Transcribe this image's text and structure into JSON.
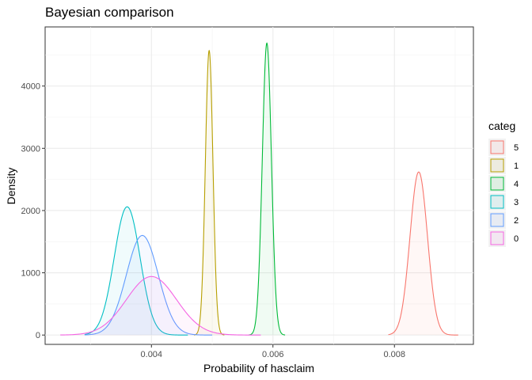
{
  "chart_data": {
    "type": "area",
    "title": "Bayesian comparison",
    "xlabel": "Probability of hasclaim",
    "ylabel": "Density",
    "xlim": [
      0.00225,
      0.0093
    ],
    "ylim": [
      -150,
      4950
    ],
    "xticks": [
      0.004,
      0.006,
      0.008
    ],
    "xtick_labels": [
      "0.004",
      "0.006",
      "0.008"
    ],
    "yticks": [
      0,
      1000,
      2000,
      3000,
      4000
    ],
    "ytick_labels": [
      "0",
      "1000",
      "2000",
      "3000",
      "4000"
    ],
    "grid": true,
    "legend": {
      "title": "categ",
      "position": "right"
    },
    "series": [
      {
        "name": "5",
        "color": "#F8766D",
        "mean": 0.0084,
        "peak": 2620,
        "range": [
          0.0079,
          0.00905
        ]
      },
      {
        "name": "1",
        "color": "#B79F00",
        "mean": 0.00495,
        "peak": 4570,
        "range": [
          0.0047,
          0.0052
        ]
      },
      {
        "name": "4",
        "color": "#00BA38",
        "mean": 0.0059,
        "peak": 4690,
        "range": [
          0.0056,
          0.0062
        ]
      },
      {
        "name": "3",
        "color": "#00BFC4",
        "mean": 0.0036,
        "peak": 2060,
        "range": [
          0.0029,
          0.0046
        ]
      },
      {
        "name": "2",
        "color": "#619CFF",
        "mean": 0.00385,
        "peak": 1600,
        "range": [
          0.0029,
          0.005
        ]
      },
      {
        "name": "0",
        "color": "#F564E3",
        "mean": 0.004,
        "peak": 940,
        "range": [
          0.0025,
          0.0058
        ]
      }
    ]
  }
}
